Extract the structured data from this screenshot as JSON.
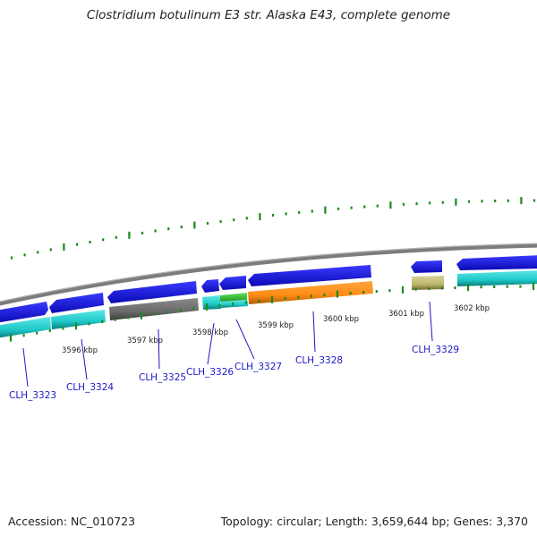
{
  "title": "Clostridium botulinum E3 str. Alaska E43, complete genome",
  "accession": "Accession: NC_010723",
  "summary": "Topology: circular; Length: 3,659,644 bp; Genes: 3,370",
  "colors": {
    "forward_gene": "#1414e6",
    "cds": "#1ec8c8",
    "rrna_grey": "#707070",
    "trna_green": "#30c030",
    "orange": "#ff8c14",
    "khaki": "#bdb76b",
    "backbone": "#8c8c8c",
    "tick": "#1a8a1a",
    "label": "#1a1ac8"
  },
  "scale_labels": [
    "3596 kbp",
    "3597 kbp",
    "3598 kbp",
    "3599 kbp",
    "3600 kbp",
    "3601 kbp",
    "3602 kbp"
  ],
  "gene_labels": [
    "CLH_3323",
    "CLH_3324",
    "CLH_3325",
    "CLH_3326",
    "CLH_3327",
    "CLH_3328",
    "CLH_3329"
  ]
}
